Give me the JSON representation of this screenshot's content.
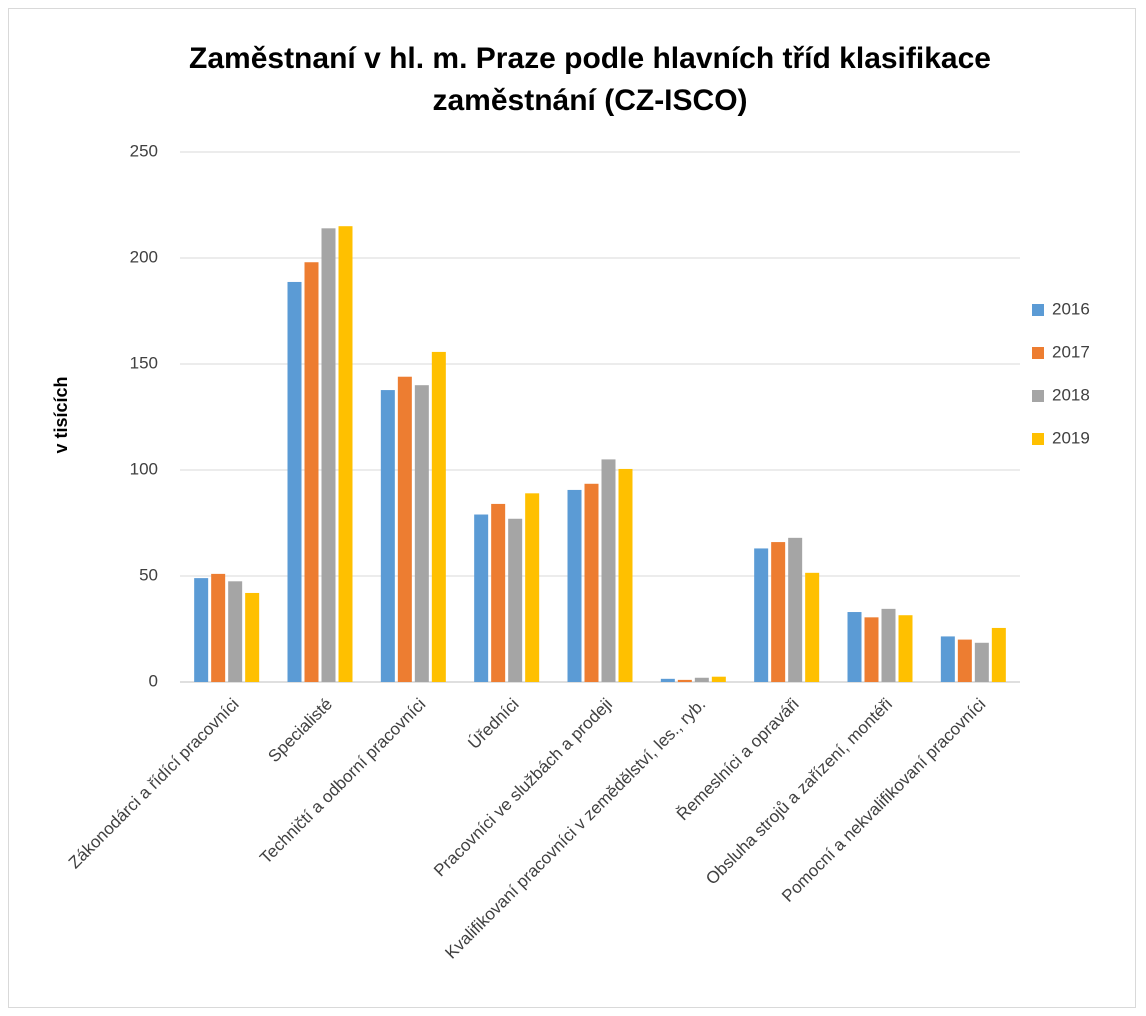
{
  "chart_data": {
    "type": "bar",
    "title": "Zaměstnaní v hl. m. Praze podle hlavních tříd klasifikace zaměstnání (CZ-ISCO)",
    "ylabel": "v tisících",
    "categories": [
      "Zákonodárci a řídící pracovníci",
      "Specialisté",
      "Techničtí a odborní pracovníci",
      "Úředníci",
      "Pracovníci ve službách a prodeji",
      "Kvalifikovaní pracovníci v zemědělství, les., ryb.",
      "Řemeslníci a opraváři",
      "Obsluha strojů a zařízení, montéři",
      "Pomocní a nekvalifikovaní pracovníci"
    ],
    "series": [
      {
        "name": "2016",
        "color": "#5b9bd5",
        "values": [
          49,
          188.7,
          137.7,
          79,
          90.6,
          1.5,
          63,
          33,
          21.5
        ]
      },
      {
        "name": "2017",
        "color": "#ed7d31",
        "values": [
          51,
          198,
          144,
          84,
          93.5,
          1,
          66,
          30.5,
          20
        ]
      },
      {
        "name": "2018",
        "color": "#a5a5a5",
        "values": [
          47.5,
          214,
          140,
          77,
          105,
          2,
          68,
          34.5,
          18.5
        ]
      },
      {
        "name": "2019",
        "color": "#ffc000",
        "values": [
          42,
          215,
          155.7,
          89,
          100.5,
          2.5,
          51.5,
          31.5,
          25.5
        ]
      }
    ],
    "ylim": [
      0,
      250
    ],
    "yticks": [
      0,
      50,
      100,
      150,
      200,
      250
    ],
    "grid": true,
    "legend": "right"
  }
}
